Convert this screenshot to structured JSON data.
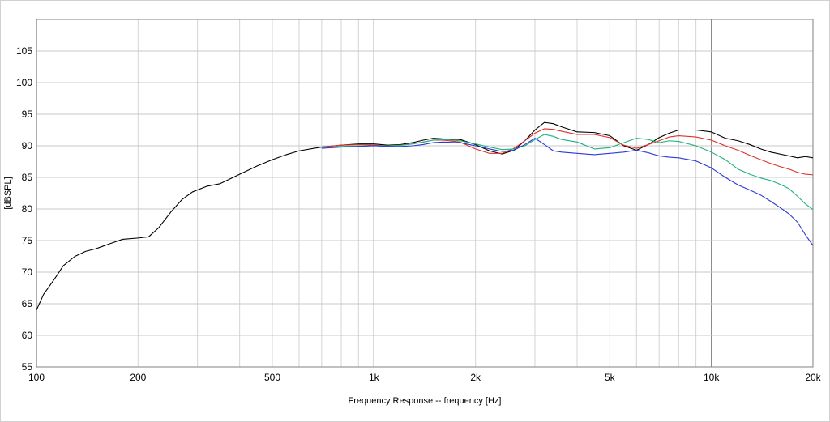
{
  "chart_data": {
    "type": "line",
    "title": "",
    "xlabel": "Frequency Response -- frequency [Hz]",
    "ylabel": "[dBSPL]",
    "xscale": "log",
    "xlim": [
      100,
      20000
    ],
    "ylim": [
      55,
      110
    ],
    "grid": true,
    "legend": "none",
    "x_tick_values": [
      100,
      200,
      500,
      1000,
      2000,
      5000,
      10000,
      20000
    ],
    "x_tick_labels": [
      "100",
      "200",
      "500",
      "1k",
      "2k",
      "5k",
      "10k",
      "20k"
    ],
    "y_ticks": [
      55,
      60,
      65,
      70,
      75,
      80,
      85,
      90,
      95,
      100,
      105
    ],
    "series": [
      {
        "color": "#000000",
        "points": [
          [
            100,
            64
          ],
          [
            105,
            66.5
          ],
          [
            110,
            68
          ],
          [
            115,
            69.5
          ],
          [
            120,
            71
          ],
          [
            130,
            72.5
          ],
          [
            140,
            73.3
          ],
          [
            150,
            73.7
          ],
          [
            165,
            74.5
          ],
          [
            180,
            75.2
          ],
          [
            200,
            75.4
          ],
          [
            215,
            75.6
          ],
          [
            230,
            77
          ],
          [
            250,
            79.5
          ],
          [
            270,
            81.5
          ],
          [
            290,
            82.7
          ],
          [
            320,
            83.6
          ],
          [
            350,
            84
          ],
          [
            400,
            85.5
          ],
          [
            450,
            86.8
          ],
          [
            500,
            87.8
          ],
          [
            550,
            88.6
          ],
          [
            600,
            89.2
          ],
          [
            700,
            89.8
          ],
          [
            800,
            90.1
          ],
          [
            900,
            90.3
          ],
          [
            1000,
            90.3
          ],
          [
            1100,
            90.1
          ],
          [
            1200,
            90.2
          ],
          [
            1300,
            90.5
          ],
          [
            1400,
            90.9
          ],
          [
            1500,
            91.2
          ],
          [
            1600,
            91.1
          ],
          [
            1800,
            91
          ],
          [
            2000,
            90.2
          ],
          [
            2200,
            89.2
          ],
          [
            2400,
            88.7
          ],
          [
            2600,
            89.3
          ],
          [
            2800,
            90.8
          ],
          [
            3000,
            92.5
          ],
          [
            3200,
            93.7
          ],
          [
            3400,
            93.5
          ],
          [
            3600,
            93
          ],
          [
            4000,
            92.2
          ],
          [
            4500,
            92.1
          ],
          [
            5000,
            91.6
          ],
          [
            5500,
            90
          ],
          [
            6000,
            89.3
          ],
          [
            6500,
            90.2
          ],
          [
            7000,
            91.3
          ],
          [
            7500,
            92
          ],
          [
            8000,
            92.5
          ],
          [
            9000,
            92.5
          ],
          [
            10000,
            92.2
          ],
          [
            11000,
            91.2
          ],
          [
            12000,
            90.8
          ],
          [
            13000,
            90.2
          ],
          [
            14000,
            89.5
          ],
          [
            15000,
            89
          ],
          [
            17000,
            88.4
          ],
          [
            18000,
            88.1
          ],
          [
            19000,
            88.3
          ],
          [
            20000,
            88.1
          ]
        ]
      },
      {
        "color": "#e0302a",
        "points": [
          [
            700,
            89.8
          ],
          [
            800,
            90.1
          ],
          [
            900,
            90.2
          ],
          [
            1000,
            90.1
          ],
          [
            1100,
            90
          ],
          [
            1200,
            90.1
          ],
          [
            1300,
            90.3
          ],
          [
            1400,
            90.6
          ],
          [
            1500,
            90.9
          ],
          [
            1600,
            90.9
          ],
          [
            1800,
            90.6
          ],
          [
            2000,
            89.5
          ],
          [
            2200,
            88.8
          ],
          [
            2400,
            88.8
          ],
          [
            2600,
            89.6
          ],
          [
            2800,
            90.8
          ],
          [
            3000,
            92
          ],
          [
            3200,
            92.7
          ],
          [
            3400,
            92.6
          ],
          [
            3600,
            92.3
          ],
          [
            4000,
            91.8
          ],
          [
            4500,
            91.8
          ],
          [
            5000,
            91.3
          ],
          [
            5500,
            90.1
          ],
          [
            6000,
            89.6
          ],
          [
            6500,
            90.2
          ],
          [
            7000,
            90.8
          ],
          [
            7500,
            91.4
          ],
          [
            8000,
            91.6
          ],
          [
            9000,
            91.4
          ],
          [
            10000,
            90.9
          ],
          [
            11000,
            90
          ],
          [
            12000,
            89.3
          ],
          [
            13000,
            88.5
          ],
          [
            14000,
            87.8
          ],
          [
            15000,
            87.2
          ],
          [
            16000,
            86.7
          ],
          [
            17000,
            86.3
          ],
          [
            18000,
            85.8
          ],
          [
            19000,
            85.5
          ],
          [
            20000,
            85.4
          ]
        ]
      },
      {
        "color": "#20b080",
        "points": [
          [
            700,
            89.7
          ],
          [
            800,
            89.9
          ],
          [
            900,
            90
          ],
          [
            1000,
            90
          ],
          [
            1100,
            90
          ],
          [
            1200,
            90.1
          ],
          [
            1300,
            90.3
          ],
          [
            1400,
            90.6
          ],
          [
            1500,
            90.9
          ],
          [
            1600,
            91
          ],
          [
            1800,
            90.8
          ],
          [
            2000,
            90.3
          ],
          [
            2200,
            89.8
          ],
          [
            2400,
            89.4
          ],
          [
            2600,
            89.5
          ],
          [
            2800,
            90
          ],
          [
            3000,
            91
          ],
          [
            3200,
            91.8
          ],
          [
            3400,
            91.5
          ],
          [
            3600,
            91
          ],
          [
            4000,
            90.6
          ],
          [
            4500,
            89.5
          ],
          [
            5000,
            89.7
          ],
          [
            5500,
            90.5
          ],
          [
            6000,
            91.2
          ],
          [
            6500,
            91
          ],
          [
            7000,
            90.5
          ],
          [
            7500,
            90.8
          ],
          [
            8000,
            90.7
          ],
          [
            9000,
            90
          ],
          [
            10000,
            89
          ],
          [
            11000,
            87.8
          ],
          [
            12000,
            86.3
          ],
          [
            13000,
            85.5
          ],
          [
            14000,
            84.9
          ],
          [
            15000,
            84.5
          ],
          [
            16000,
            83.9
          ],
          [
            17000,
            83.2
          ],
          [
            18000,
            82
          ],
          [
            19000,
            80.8
          ],
          [
            20000,
            79.9
          ]
        ]
      },
      {
        "color": "#2a3ad8",
        "points": [
          [
            700,
            89.6
          ],
          [
            800,
            89.8
          ],
          [
            900,
            89.9
          ],
          [
            1000,
            90
          ],
          [
            1100,
            89.9
          ],
          [
            1200,
            89.9
          ],
          [
            1300,
            90
          ],
          [
            1400,
            90.2
          ],
          [
            1500,
            90.5
          ],
          [
            1600,
            90.6
          ],
          [
            1800,
            90.5
          ],
          [
            2000,
            90
          ],
          [
            2200,
            89.5
          ],
          [
            2400,
            89.1
          ],
          [
            2600,
            89.3
          ],
          [
            2800,
            90.2
          ],
          [
            3000,
            91.2
          ],
          [
            3200,
            90.2
          ],
          [
            3400,
            89.2
          ],
          [
            3600,
            89
          ],
          [
            4000,
            88.8
          ],
          [
            4500,
            88.6
          ],
          [
            5000,
            88.8
          ],
          [
            5500,
            89
          ],
          [
            6000,
            89.3
          ],
          [
            6500,
            88.9
          ],
          [
            7000,
            88.4
          ],
          [
            7500,
            88.2
          ],
          [
            8000,
            88.1
          ],
          [
            9000,
            87.6
          ],
          [
            10000,
            86.5
          ],
          [
            11000,
            85
          ],
          [
            12000,
            83.8
          ],
          [
            13000,
            83
          ],
          [
            14000,
            82.2
          ],
          [
            15000,
            81.2
          ],
          [
            16000,
            80.2
          ],
          [
            17000,
            79.2
          ],
          [
            18000,
            77.9
          ],
          [
            19000,
            75.9
          ],
          [
            20000,
            74.2
          ]
        ]
      }
    ]
  }
}
